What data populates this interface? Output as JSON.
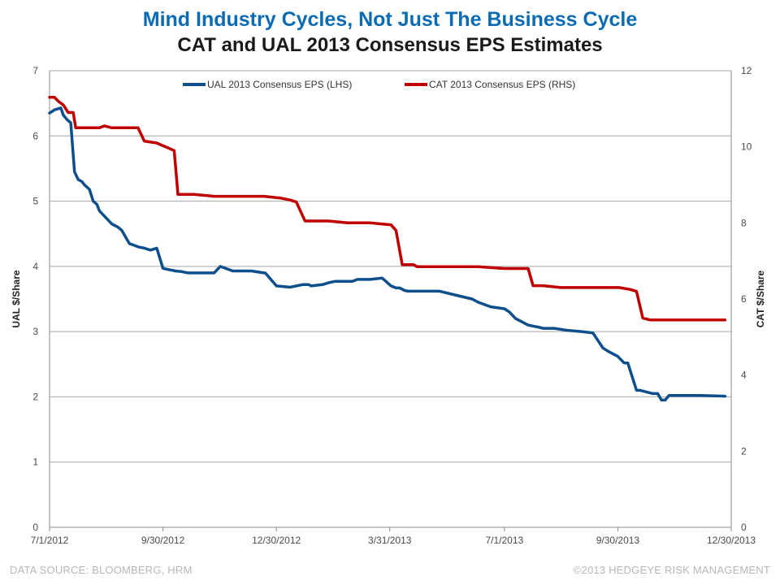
{
  "header": {
    "title": "Mind Industry Cycles, Not Just The Business Cycle",
    "subtitle": "CAT and UAL 2013 Consensus EPS Estimates"
  },
  "footer": {
    "source": "DATA SOURCE: BLOOMBERG, HRM",
    "copyright": "©2013 HEDGEYE RISK MANAGEMENT"
  },
  "chart_data": {
    "type": "line",
    "title": "CAT and UAL 2013 Consensus EPS Estimates",
    "ylabel_left": "UAL $/Share",
    "ylabel_right": "CAT $/Share",
    "ylim_left": [
      0,
      7
    ],
    "ylim_right": [
      0,
      12
    ],
    "x_ticks": [
      "7/1/2012",
      "9/30/2012",
      "12/30/2012",
      "3/31/2013",
      "7/1/2013",
      "9/30/2013",
      "12/30/2013"
    ],
    "y_ticks_left": [
      0,
      1,
      2,
      3,
      4,
      5,
      6,
      7
    ],
    "y_ticks_right": [
      0,
      2,
      4,
      6,
      8,
      10,
      12
    ],
    "grid": true,
    "legend_position": "top-center",
    "colors": {
      "ual": "#0d4f8b",
      "cat": "#c00000",
      "grid": "#a6a6a6",
      "title": "#0b6bb3"
    },
    "series": [
      {
        "name": "UAL 2013 Consensus EPS (LHS)",
        "axis": "left",
        "x": [
          "2012-07-01",
          "2012-07-05",
          "2012-07-10",
          "2012-07-12",
          "2012-07-15",
          "2012-07-18",
          "2012-07-21",
          "2012-07-24",
          "2012-07-27",
          "2012-07-29",
          "2012-08-02",
          "2012-08-05",
          "2012-08-08",
          "2012-08-10",
          "2012-08-15",
          "2012-08-20",
          "2012-08-25",
          "2012-08-28",
          "2012-09-03",
          "2012-09-06",
          "2012-09-10",
          "2012-09-15",
          "2012-09-20",
          "2012-09-25",
          "2012-09-30",
          "2012-10-05",
          "2012-10-10",
          "2012-10-15",
          "2012-10-20",
          "2012-10-23",
          "2012-11-01",
          "2012-11-10",
          "2012-11-15",
          "2012-11-25",
          "2012-12-10",
          "2012-12-20",
          "2012-12-21",
          "2012-12-22",
          "2012-12-30",
          "2013-01-10",
          "2013-01-20",
          "2013-01-25",
          "2013-01-27",
          "2013-02-05",
          "2013-02-10",
          "2013-02-15",
          "2013-03-01",
          "2013-03-05",
          "2013-03-15",
          "2013-03-25",
          "2013-04-01",
          "2013-04-05",
          "2013-04-08",
          "2013-04-12",
          "2013-04-15",
          "2013-04-25",
          "2013-05-10",
          "2013-05-25",
          "2013-06-05",
          "2013-06-10",
          "2013-06-20",
          "2013-07-01",
          "2013-07-05",
          "2013-07-10",
          "2013-07-20",
          "2013-07-25",
          "2013-07-28",
          "2013-08-01",
          "2013-08-10",
          "2013-08-20",
          "2013-09-01",
          "2013-09-10",
          "2013-09-18",
          "2013-09-22",
          "2013-09-30",
          "2013-10-05",
          "2013-10-08",
          "2013-10-15",
          "2013-10-18",
          "2013-10-28",
          "2013-11-01",
          "2013-11-04",
          "2013-11-07",
          "2013-11-10",
          "2013-11-15",
          "2013-11-25",
          "2013-12-05",
          "2013-12-25"
        ],
        "values": [
          6.35,
          6.4,
          6.43,
          6.32,
          6.25,
          6.2,
          5.45,
          5.33,
          5.3,
          5.25,
          5.18,
          5.0,
          4.95,
          4.85,
          4.75,
          4.65,
          4.6,
          4.55,
          4.35,
          4.33,
          4.3,
          4.28,
          4.25,
          4.28,
          3.97,
          3.95,
          3.93,
          3.92,
          3.9,
          3.9,
          3.9,
          3.9,
          4.0,
          3.93,
          3.93,
          3.9,
          3.9,
          3.88,
          3.7,
          3.68,
          3.72,
          3.72,
          3.7,
          3.72,
          3.75,
          3.77,
          3.77,
          3.8,
          3.8,
          3.82,
          3.7,
          3.67,
          3.67,
          3.63,
          3.62,
          3.62,
          3.62,
          3.55,
          3.5,
          3.45,
          3.38,
          3.35,
          3.3,
          3.2,
          3.1,
          3.08,
          3.07,
          3.05,
          3.05,
          3.02,
          3.0,
          2.98,
          2.75,
          2.7,
          2.62,
          2.52,
          2.52,
          2.1,
          2.1,
          2.05,
          2.05,
          1.95,
          1.95,
          2.02,
          2.02,
          2.02,
          2.02,
          2.01
        ]
      },
      {
        "name": "CAT 2013 Consensus EPS (RHS)",
        "axis": "right",
        "x": [
          "2012-07-01",
          "2012-07-05",
          "2012-07-08",
          "2012-07-12",
          "2012-07-16",
          "2012-07-20",
          "2012-07-22",
          "2012-07-25",
          "2012-08-10",
          "2012-08-14",
          "2012-08-20",
          "2012-08-28",
          "2012-09-05",
          "2012-09-10",
          "2012-09-15",
          "2012-09-25",
          "2012-10-09",
          "2012-10-12",
          "2012-10-15",
          "2012-10-25",
          "2012-11-10",
          "2012-12-05",
          "2012-12-20",
          "2013-01-03",
          "2013-01-10",
          "2013-01-15",
          "2013-01-22",
          "2013-01-25",
          "2013-02-10",
          "2013-02-25",
          "2013-03-15",
          "2013-04-01",
          "2013-04-05",
          "2013-04-10",
          "2013-04-15",
          "2013-04-19",
          "2013-04-22",
          "2013-05-10",
          "2013-06-10",
          "2013-07-01",
          "2013-07-10",
          "2013-07-20",
          "2013-07-24",
          "2013-08-01",
          "2013-08-15",
          "2013-09-01",
          "2013-09-15",
          "2013-10-01",
          "2013-10-10",
          "2013-10-15",
          "2013-10-20",
          "2013-10-26",
          "2013-11-10",
          "2013-12-25"
        ],
        "values": [
          11.3,
          11.3,
          11.2,
          11.1,
          10.9,
          10.9,
          10.5,
          10.5,
          10.5,
          10.55,
          10.5,
          10.5,
          10.5,
          10.5,
          10.15,
          10.1,
          9.9,
          8.75,
          8.75,
          8.75,
          8.7,
          8.7,
          8.7,
          8.65,
          8.6,
          8.55,
          8.05,
          8.05,
          8.05,
          8.0,
          8.0,
          7.95,
          7.8,
          6.9,
          6.9,
          6.9,
          6.85,
          6.85,
          6.85,
          6.8,
          6.8,
          6.8,
          6.35,
          6.35,
          6.3,
          6.3,
          6.3,
          6.3,
          6.25,
          6.2,
          5.5,
          5.45,
          5.45,
          5.45
        ]
      }
    ]
  }
}
